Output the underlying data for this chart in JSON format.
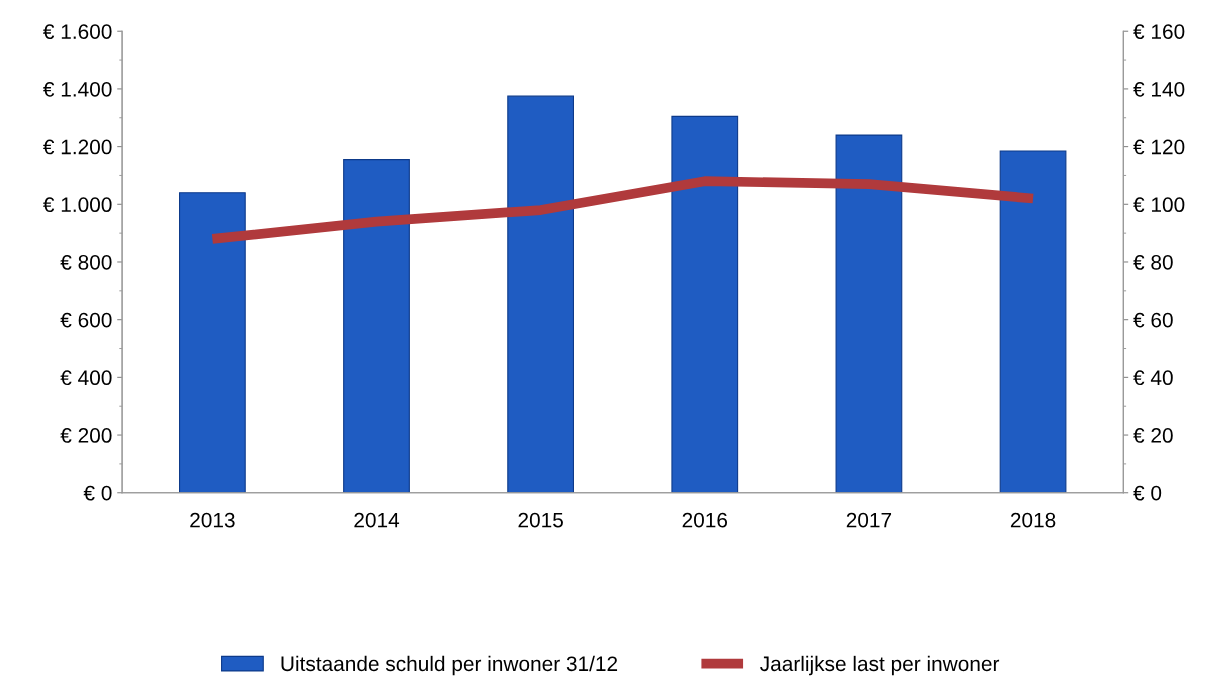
{
  "chart_data": {
    "type": "bar",
    "categories": [
      "2013",
      "2014",
      "2015",
      "2016",
      "2017",
      "2018"
    ],
    "series": [
      {
        "name": "Uitstaande schuld per inwoner 31/12",
        "color": "#1f5cc2",
        "values": [
          1040,
          1155,
          1375,
          1305,
          1240,
          1185
        ]
      },
      {
        "name": "Jaarlijkse last per inwoner",
        "type": "line",
        "axis": "y2",
        "color": "#b03a3c",
        "values": [
          88,
          94,
          98,
          108,
          107,
          102
        ]
      }
    ],
    "ylim": [
      0,
      1600
    ],
    "yticks": [
      {
        "value": 0,
        "label": "€ 0"
      },
      {
        "value": 200,
        "label": "€ 200"
      },
      {
        "value": 400,
        "label": "€ 400"
      },
      {
        "value": 600,
        "label": "€ 600"
      },
      {
        "value": 800,
        "label": "€ 800"
      },
      {
        "value": 1000,
        "label": "€ 1.000"
      },
      {
        "value": 1200,
        "label": "€ 1.200"
      },
      {
        "value": 1400,
        "label": "€ 1.400"
      },
      {
        "value": 1600,
        "label": "€ 1.600"
      }
    ],
    "y2lim": [
      0,
      160
    ],
    "y2ticks": [
      {
        "value": 0,
        "label": "€ 0"
      },
      {
        "value": 20,
        "label": "€ 20"
      },
      {
        "value": 40,
        "label": "€ 40"
      },
      {
        "value": 60,
        "label": "€ 60"
      },
      {
        "value": 80,
        "label": "€ 80"
      },
      {
        "value": 100,
        "label": "€ 100"
      },
      {
        "value": 120,
        "label": "€ 120"
      },
      {
        "value": 140,
        "label": "€ 140"
      },
      {
        "value": 160,
        "label": "€ 160"
      }
    ],
    "grid": false,
    "legend": "bottom",
    "marker": "none",
    "line_style": "solid"
  }
}
